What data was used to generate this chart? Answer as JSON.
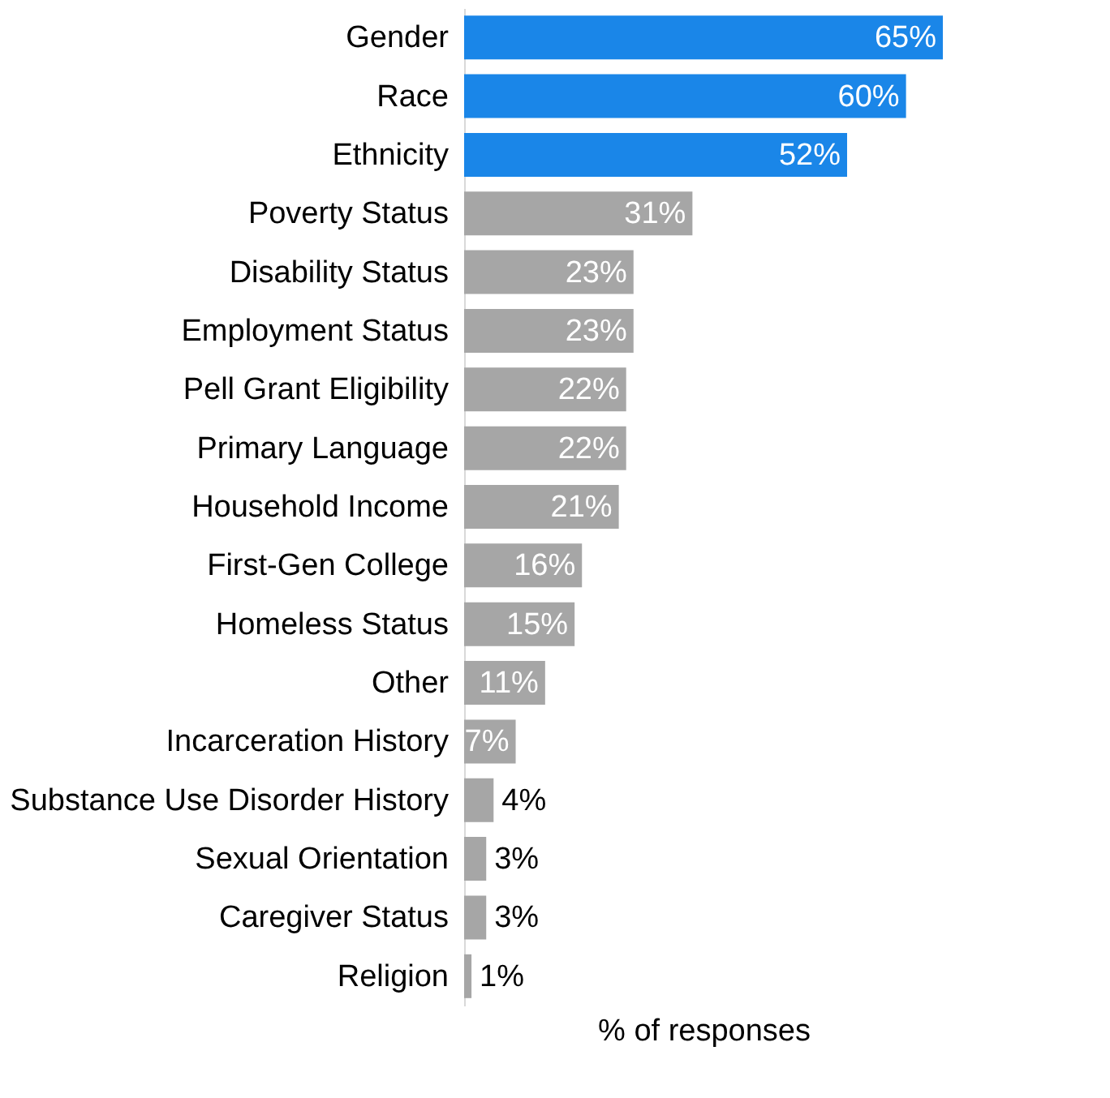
{
  "chart_data": {
    "type": "bar",
    "orientation": "horizontal",
    "xlabel": "% of responses",
    "categories": [
      "Gender",
      "Race",
      "Ethnicity",
      "Poverty Status",
      "Disability Status",
      "Employment Status",
      "Pell Grant Eligibility",
      "Primary Language",
      "Household Income",
      "First-Gen College",
      "Homeless Status",
      "Other",
      "Incarceration History",
      "Substance Use Disorder History",
      "Sexual Orientation",
      "Caregiver Status",
      "Religion"
    ],
    "values": [
      65,
      60,
      52,
      31,
      23,
      23,
      22,
      22,
      21,
      16,
      15,
      11,
      7,
      4,
      3,
      3,
      1
    ],
    "colors": [
      "#1a86e8",
      "#1a86e8",
      "#1a86e8",
      "#a6a6a6",
      "#a6a6a6",
      "#a6a6a6",
      "#a6a6a6",
      "#a6a6a6",
      "#a6a6a6",
      "#a6a6a6",
      "#a6a6a6",
      "#a6a6a6",
      "#a6a6a6",
      "#a6a6a6",
      "#a6a6a6",
      "#a6a6a6",
      "#a6a6a6"
    ],
    "value_labels": [
      "65%",
      "60%",
      "52%",
      "31%",
      "23%",
      "23%",
      "22%",
      "22%",
      "21%",
      "16%",
      "15%",
      "11%",
      "7%",
      "4%",
      "3%",
      "3%",
      "1%"
    ],
    "xlim": [
      0,
      65
    ],
    "tick_labels": "y",
    "grid": false
  }
}
